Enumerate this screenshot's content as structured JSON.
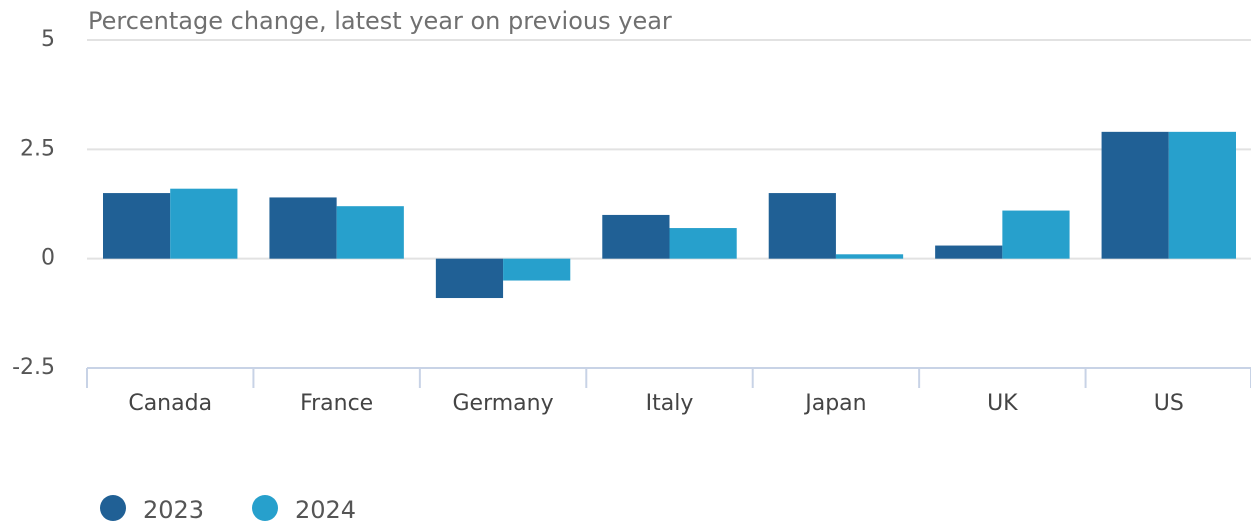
{
  "chart_data": {
    "type": "bar",
    "title": "Percentage change, latest year on previous year",
    "categories": [
      "Canada",
      "France",
      "Germany",
      "Italy",
      "Japan",
      "UK",
      "US"
    ],
    "series": [
      {
        "name": "2023",
        "color": "#206095",
        "values": [
          1.5,
          1.4,
          -0.9,
          1.0,
          1.5,
          0.3,
          2.9
        ]
      },
      {
        "name": "2024",
        "color": "#27a0cc",
        "values": [
          1.6,
          1.2,
          -0.5,
          0.7,
          0.1,
          1.1,
          2.9
        ]
      }
    ],
    "ylim": [
      -2.5,
      5
    ],
    "yticks": [
      -2.5,
      0,
      2.5,
      5
    ],
    "grid": true,
    "legend": "bottom-left"
  }
}
